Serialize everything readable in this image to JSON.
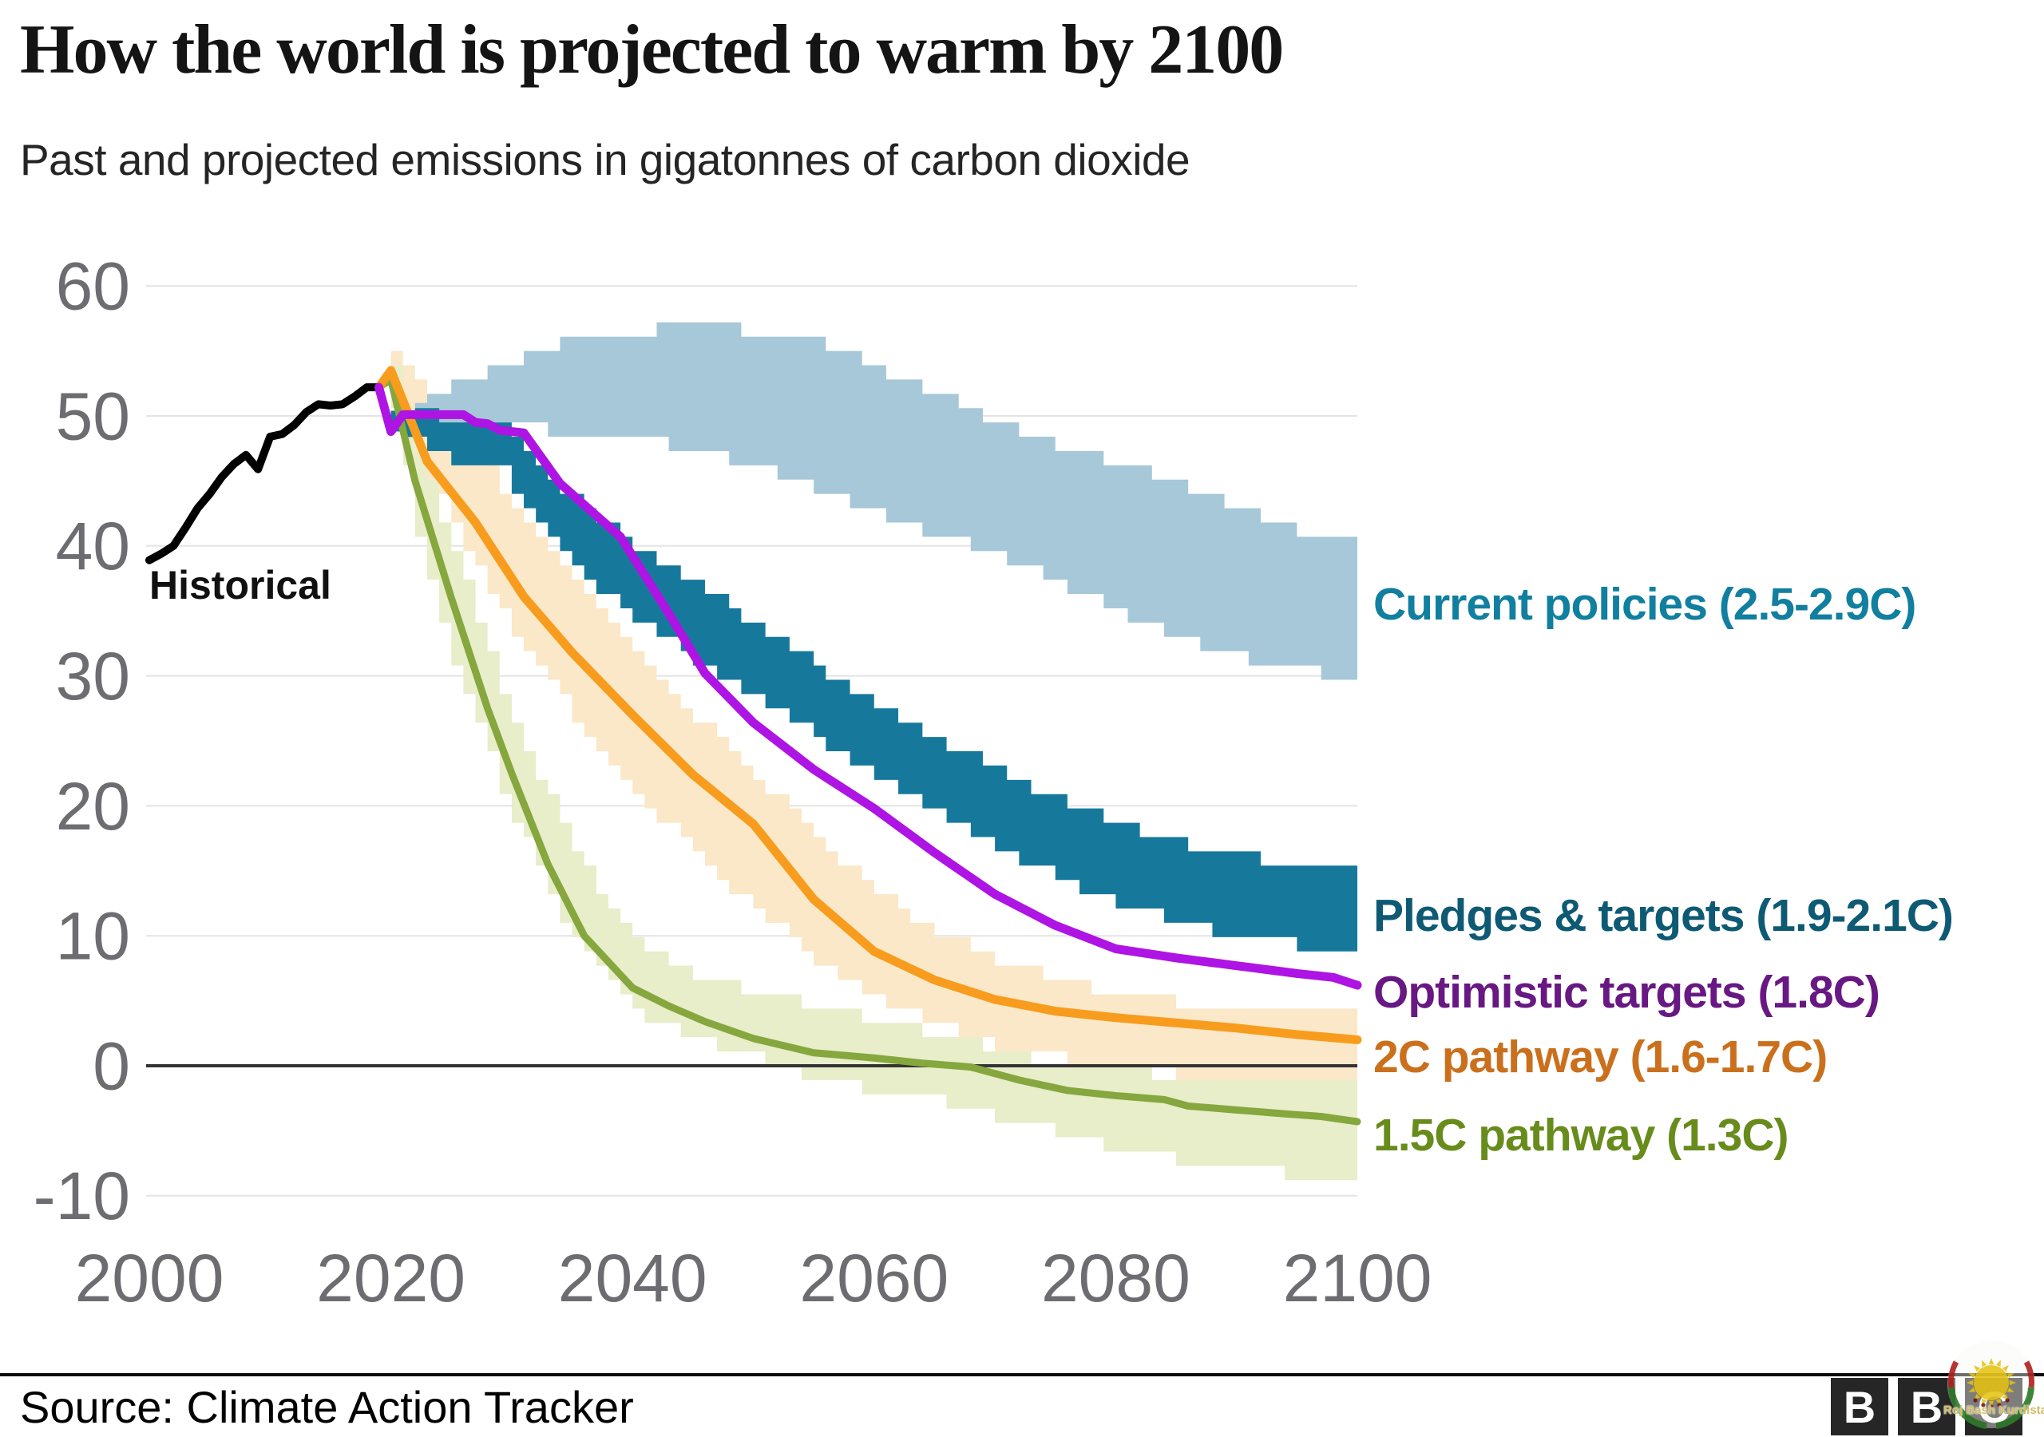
{
  "header": {
    "title": "How the world is projected to warm by 2100",
    "subtitle": "Past and projected emissions in gigatonnes of carbon dioxide"
  },
  "footer": {
    "source": "Source: Climate Action Tracker",
    "logo_letters": {
      "b1": "B",
      "b2": "B",
      "b3": "C"
    },
    "watermark_text": "Roj Bash Kurdistan"
  },
  "colors": {
    "title": "#141414",
    "axis_text": "#6d6d71",
    "gridline": "#e4e4e4",
    "zero_line": "#333333",
    "background": "#ffffff"
  },
  "chart_data": {
    "type": "area",
    "title": "How the world is projected to warm by 2100",
    "xlabel": "",
    "ylabel": "Past and projected emissions in gigatonnes of carbon dioxide",
    "x_axis": {
      "ticks": [
        2000,
        2020,
        2040,
        2060,
        2080,
        2100
      ],
      "range": [
        2000,
        2100
      ]
    },
    "y_axis": {
      "ticks": [
        60,
        50,
        40,
        30,
        20,
        10,
        0,
        -10
      ],
      "range": [
        -10,
        60
      ],
      "grid": true
    },
    "legend_position": "right-annotations",
    "inline_label": {
      "text": "Historical",
      "color": "#111111"
    },
    "annotations": [
      {
        "text": "Current policies (2.5-2.9C)",
        "color": "#117f9f",
        "anchor_value_2100": 35
      },
      {
        "text": "Pledges & targets (1.9-2.1C)",
        "color": "#0e5a74",
        "anchor_value_2100": 12
      },
      {
        "text": "Optimistic targets (1.8C)",
        "color": "#681883",
        "anchor_value_2100": 6.2
      },
      {
        "text": "2C pathway (1.6-1.7C)",
        "color": "#ca701d",
        "anchor_value_2100": 2.0
      },
      {
        "text": "1.5C pathway (1.3C)",
        "color": "#688c1c",
        "anchor_value_2100": -4.3
      }
    ],
    "series": [
      {
        "name": "2C pathway range",
        "kind": "band",
        "color": "#fae8c8",
        "points": [
          [
            2019,
            52.2,
            52.2
          ],
          [
            2020,
            51.3,
            55.1
          ],
          [
            2025,
            41.5,
            50.0
          ],
          [
            2030,
            33.5,
            43.0
          ],
          [
            2035,
            26.8,
            37.3
          ],
          [
            2040,
            21.2,
            31.8
          ],
          [
            2045,
            16.2,
            26.8
          ],
          [
            2050,
            12.1,
            22.4
          ],
          [
            2055,
            8.2,
            17.4
          ],
          [
            2060,
            5.2,
            13.3
          ],
          [
            2065,
            3.1,
            10.2
          ],
          [
            2070,
            1.6,
            8.1
          ],
          [
            2075,
            0.6,
            6.6
          ],
          [
            2080,
            -0.1,
            5.6
          ],
          [
            2085,
            -0.6,
            4.8
          ],
          [
            2090,
            -0.9,
            4.5
          ],
          [
            2095,
            -1.1,
            4.3
          ],
          [
            2100,
            -1.2,
            4.2
          ]
        ]
      },
      {
        "name": "1.5C pathway range",
        "kind": "band",
        "color": "#e8edca",
        "points": [
          [
            2019,
            52.2,
            52.2
          ],
          [
            2020,
            51.0,
            53.6
          ],
          [
            2022,
            40.5,
            47.5
          ],
          [
            2025,
            31.0,
            39.5
          ],
          [
            2030,
            19.0,
            26.5
          ],
          [
            2035,
            9.5,
            16.5
          ],
          [
            2040,
            4.2,
            9.5
          ],
          [
            2045,
            2.2,
            6.8
          ],
          [
            2050,
            0.8,
            5.6
          ],
          [
            2055,
            -1.2,
            4.6
          ],
          [
            2060,
            -1.8,
            3.6
          ],
          [
            2065,
            -2.7,
            2.4
          ],
          [
            2070,
            -3.9,
            1.2
          ],
          [
            2075,
            -5.2,
            0.0
          ],
          [
            2080,
            -6.3,
            -0.5
          ],
          [
            2085,
            -7.3,
            -0.6
          ],
          [
            2090,
            -8.0,
            -0.8
          ],
          [
            2095,
            -8.4,
            -0.8
          ],
          [
            2100,
            -8.6,
            -0.8
          ]
        ]
      },
      {
        "name": "Current policies",
        "kind": "band",
        "color": "#a6c8d8",
        "points": [
          [
            2021,
            49.0,
            50.2
          ],
          [
            2023,
            49.8,
            51.8
          ],
          [
            2025,
            50.0,
            52.6
          ],
          [
            2030,
            49.4,
            54.4
          ],
          [
            2035,
            48.6,
            55.9
          ],
          [
            2040,
            48.4,
            56.6
          ],
          [
            2045,
            47.4,
            56.8
          ],
          [
            2050,
            46.0,
            56.6
          ],
          [
            2055,
            44.3,
            55.8
          ],
          [
            2060,
            42.6,
            53.7
          ],
          [
            2065,
            40.9,
            51.7
          ],
          [
            2070,
            39.3,
            49.5
          ],
          [
            2075,
            37.2,
            47.6
          ],
          [
            2080,
            35.0,
            46.2
          ],
          [
            2085,
            32.8,
            44.9
          ],
          [
            2090,
            31.4,
            42.8
          ],
          [
            2095,
            30.4,
            41.2
          ],
          [
            2100,
            30.0,
            40.2
          ]
        ]
      },
      {
        "name": "Pledges & targets",
        "kind": "band",
        "color": "#16799c",
        "points": [
          [
            2020,
            48.8,
            50.4
          ],
          [
            2025,
            46.7,
            49.9
          ],
          [
            2029,
            45.8,
            49.2
          ],
          [
            2032,
            42.0,
            46.5
          ],
          [
            2035,
            38.3,
            43.5
          ],
          [
            2040,
            34.6,
            40.1
          ],
          [
            2045,
            31.3,
            37.2
          ],
          [
            2050,
            28.4,
            33.9
          ],
          [
            2055,
            25.3,
            30.8
          ],
          [
            2060,
            22.4,
            28.0
          ],
          [
            2065,
            19.5,
            25.2
          ],
          [
            2070,
            16.9,
            22.7
          ],
          [
            2075,
            14.5,
            20.4
          ],
          [
            2080,
            12.6,
            18.6
          ],
          [
            2085,
            11.1,
            17.2
          ],
          [
            2090,
            9.9,
            16.1
          ],
          [
            2095,
            9.3,
            15.4
          ],
          [
            2100,
            9.0,
            15.0
          ]
        ]
      },
      {
        "name": "1.5C pathway",
        "kind": "line",
        "color": "#85a73e",
        "width": 9,
        "points": [
          [
            2019,
            52.2
          ],
          [
            2020,
            52.8
          ],
          [
            2022,
            45.0
          ],
          [
            2025,
            36.0
          ],
          [
            2028,
            27.5
          ],
          [
            2030,
            22.5
          ],
          [
            2033,
            15.5
          ],
          [
            2036,
            10.0
          ],
          [
            2040,
            6.0
          ],
          [
            2043,
            4.6
          ],
          [
            2046,
            3.4
          ],
          [
            2050,
            2.1
          ],
          [
            2055,
            1.0
          ],
          [
            2060,
            0.6
          ],
          [
            2064,
            0.2
          ],
          [
            2068,
            -0.1
          ],
          [
            2072,
            -1.1
          ],
          [
            2076,
            -1.9
          ],
          [
            2080,
            -2.3
          ],
          [
            2084,
            -2.6
          ],
          [
            2086,
            -3.1
          ],
          [
            2090,
            -3.4
          ],
          [
            2094,
            -3.7
          ],
          [
            2097,
            -3.9
          ],
          [
            2100,
            -4.3
          ]
        ]
      },
      {
        "name": "2C pathway",
        "kind": "line",
        "color": "#f89c1e",
        "width": 11,
        "points": [
          [
            2019,
            52.2
          ],
          [
            2020,
            53.5
          ],
          [
            2023,
            46.5
          ],
          [
            2027,
            41.8
          ],
          [
            2031,
            36.1
          ],
          [
            2035,
            31.8
          ],
          [
            2040,
            27.0
          ],
          [
            2045,
            22.4
          ],
          [
            2050,
            18.6
          ],
          [
            2055,
            12.8
          ],
          [
            2060,
            8.8
          ],
          [
            2065,
            6.6
          ],
          [
            2070,
            5.1
          ],
          [
            2075,
            4.2
          ],
          [
            2080,
            3.7
          ],
          [
            2085,
            3.3
          ],
          [
            2090,
            2.9
          ],
          [
            2095,
            2.4
          ],
          [
            2100,
            2.0
          ]
        ]
      },
      {
        "name": "Historical",
        "kind": "line",
        "color": "#000000",
        "width": 10,
        "points": [
          [
            2000,
            38.9
          ],
          [
            2001,
            39.4
          ],
          [
            2002,
            40.0
          ],
          [
            2003,
            41.4
          ],
          [
            2004,
            42.9
          ],
          [
            2005,
            44.0
          ],
          [
            2006,
            45.3
          ],
          [
            2007,
            46.3
          ],
          [
            2008,
            47.0
          ],
          [
            2009,
            45.9
          ],
          [
            2010,
            48.4
          ],
          [
            2011,
            48.6
          ],
          [
            2012,
            49.3
          ],
          [
            2013,
            50.3
          ],
          [
            2014,
            50.9
          ],
          [
            2015,
            50.8
          ],
          [
            2016,
            50.9
          ],
          [
            2017,
            51.5
          ],
          [
            2018,
            52.2
          ],
          [
            2019,
            52.2
          ]
        ]
      },
      {
        "name": "Optimistic targets",
        "kind": "line",
        "color": "#ae14e3",
        "width": 11,
        "points": [
          [
            2019,
            52.2
          ],
          [
            2020,
            48.8
          ],
          [
            2021,
            50.1
          ],
          [
            2026,
            50.1
          ],
          [
            2027,
            49.5
          ],
          [
            2028,
            49.4
          ],
          [
            2029,
            48.9
          ],
          [
            2031,
            48.7
          ],
          [
            2034,
            44.8
          ],
          [
            2039,
            40.7
          ],
          [
            2043,
            34.8
          ],
          [
            2046,
            30.2
          ],
          [
            2050,
            26.4
          ],
          [
            2055,
            22.8
          ],
          [
            2060,
            19.8
          ],
          [
            2065,
            16.4
          ],
          [
            2070,
            13.2
          ],
          [
            2075,
            10.8
          ],
          [
            2080,
            9.0
          ],
          [
            2085,
            8.3
          ],
          [
            2090,
            7.7
          ],
          [
            2095,
            7.1
          ],
          [
            2098,
            6.8
          ],
          [
            2100,
            6.2
          ]
        ]
      }
    ]
  }
}
